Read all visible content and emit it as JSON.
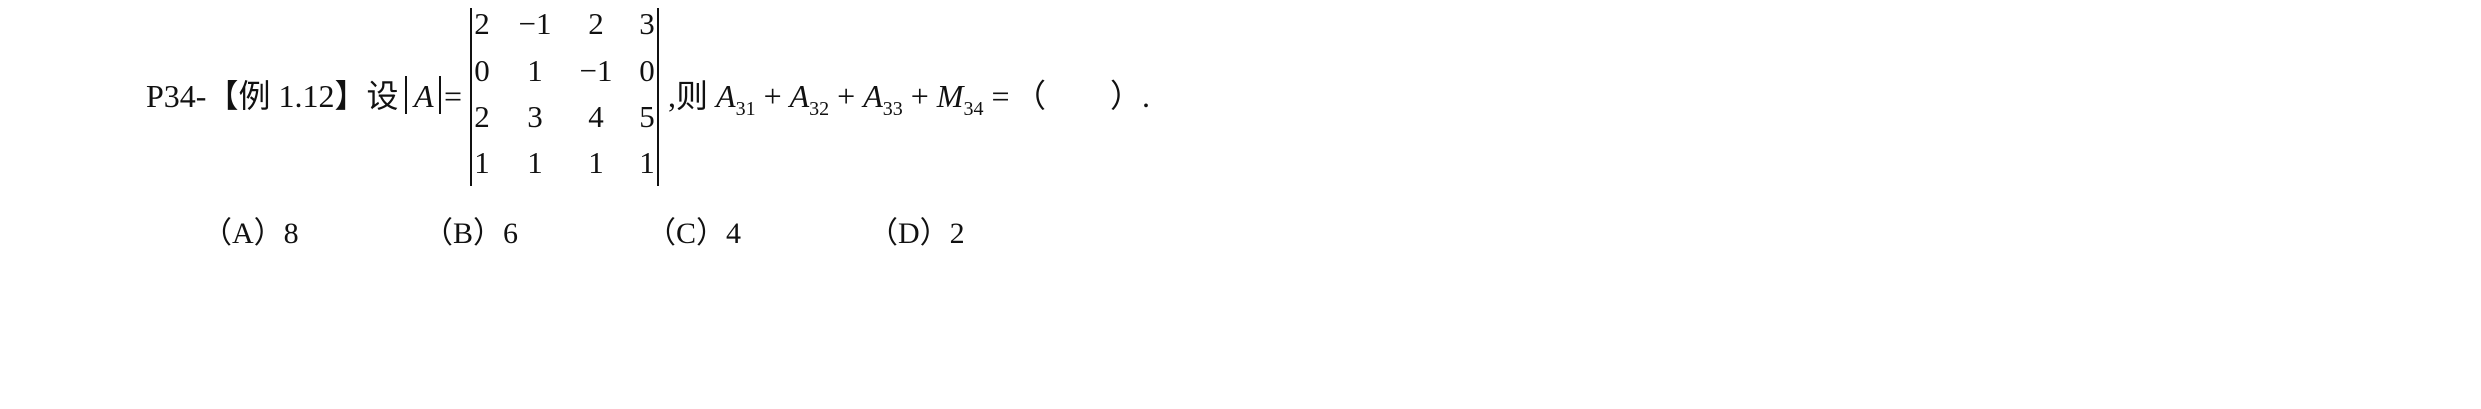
{
  "problem": {
    "prefix": "P34-【例 1.12】设",
    "matrix_symbol": "A",
    "equals": "=",
    "determinant": {
      "rows": [
        [
          "2",
          "−1",
          "2",
          "3"
        ],
        [
          "0",
          "1",
          "−1",
          "0"
        ],
        [
          "2",
          "3",
          "4",
          "5"
        ],
        [
          "1",
          "1",
          "1",
          "1"
        ]
      ]
    },
    "expression": {
      "lead": ",则 ",
      "terms": [
        {
          "symbol": "A",
          "sub": "31"
        },
        {
          "symbol": "A",
          "sub": "32"
        },
        {
          "symbol": "A",
          "sub": "33"
        },
        {
          "symbol": "M",
          "sub": "34"
        }
      ],
      "operator": " + ",
      "equals": " = "
    },
    "blank": "（　　）."
  },
  "options": [
    {
      "label": "（A）8"
    },
    {
      "label": "（B）6"
    },
    {
      "label": "（C）4"
    },
    {
      "label": "（D）2"
    }
  ]
}
